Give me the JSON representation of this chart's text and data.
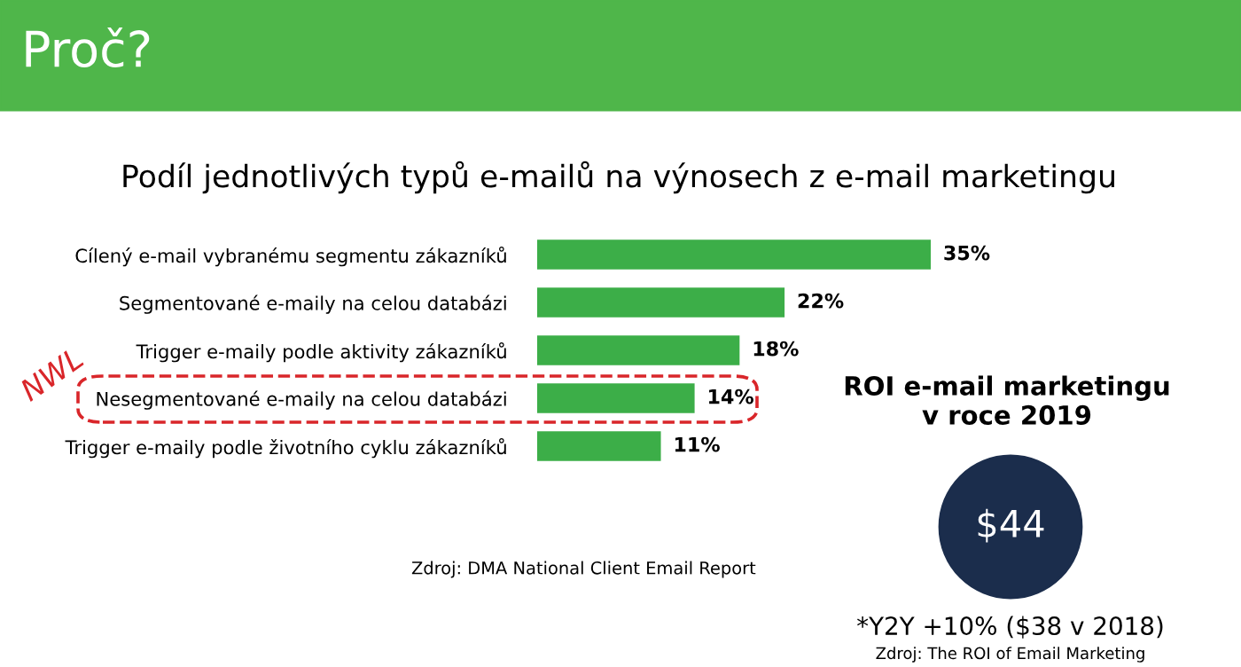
{
  "chart_data": [
    {
      "type": "bar",
      "orientation": "horizontal",
      "title": "Proč?",
      "subtitle": "Podíl jednotlivých typů e-mailů na výnosech z e-mail marketingu",
      "categories": [
        "Cílený e-mail vybranému segmentu zákazníků",
        "Segmentované e-maily na celou databázi",
        "Trigger e-maily podle aktivity zákazníků",
        "Nesegmentované e-maily na celou databázi",
        "Trigger e-maily podle životního cyklu zákazníků"
      ],
      "values": [
        35,
        22,
        18,
        14,
        11
      ],
      "color": "#3cae48",
      "value_labels": [
        "35%",
        "22%",
        "18%",
        "14%",
        "11%"
      ],
      "annotations": [
        "NWL",
        "Zdroj: DMA National Client Email Report"
      ],
      "grid": false,
      "legend": false
    },
    {
      "type": "other",
      "title": "ROI e-mail marketingu\nv roce 2019",
      "annotations": [
        "$44",
        "*Y2Y +10% ($38 v 2018)",
        "Zdroj: The ROI of Email Marketing"
      ]
    }
  ]
}
